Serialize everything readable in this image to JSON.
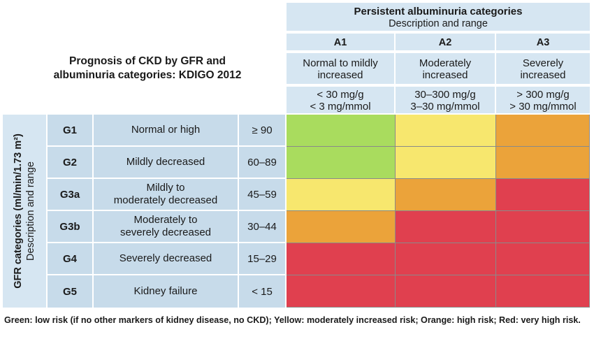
{
  "title": {
    "line1": "Prognosis of CKD by GFR and",
    "line2": "albuminuria categories: KDIGO 2012"
  },
  "albuminuria_header": {
    "title": "Persistent albuminuria categories",
    "subtitle": "Description and range",
    "columns": [
      {
        "id": "A1",
        "desc_line1": "Normal to mildly",
        "desc_line2": "increased",
        "range_line1": "< 30 mg/g",
        "range_line2": "< 3 mg/mmol"
      },
      {
        "id": "A2",
        "desc_line1": "Moderately",
        "desc_line2": "increased",
        "range_line1": "30–300 mg/g",
        "range_line2": "3–30 mg/mmol"
      },
      {
        "id": "A3",
        "desc_line1": "Severely",
        "desc_line2": "increased",
        "range_line1": "> 300 mg/g",
        "range_line2": "> 30 mg/mmol"
      }
    ]
  },
  "gfr_sidebar": {
    "line1": "GFR categories (ml/min/1.73 m²)",
    "line2": "Description and range"
  },
  "rows": [
    {
      "id": "G1",
      "desc_line1": "Normal or high",
      "desc_line2": "",
      "range": "≥ 90"
    },
    {
      "id": "G2",
      "desc_line1": "Mildly decreased",
      "desc_line2": "",
      "range": "60–89"
    },
    {
      "id": "G3a",
      "desc_line1": "Mildly to",
      "desc_line2": "moderately decreased",
      "range": "45–59"
    },
    {
      "id": "G3b",
      "desc_line1": "Moderately to",
      "desc_line2": "severely decreased",
      "range": "30–44"
    },
    {
      "id": "G4",
      "desc_line1": "Severely decreased",
      "desc_line2": "",
      "range": "15–29"
    },
    {
      "id": "G5",
      "desc_line1": "Kidney failure",
      "desc_line2": "",
      "range": "< 15"
    }
  ],
  "risk_grid": [
    [
      "green",
      "yellow",
      "orange"
    ],
    [
      "green",
      "yellow",
      "orange"
    ],
    [
      "yellow",
      "orange",
      "red"
    ],
    [
      "orange",
      "red",
      "red"
    ],
    [
      "red",
      "red",
      "red"
    ],
    [
      "red",
      "red",
      "red"
    ]
  ],
  "risk_colors": {
    "green": "#a9dc5e",
    "yellow": "#f7e76e",
    "orange": "#eba33a",
    "red": "#e0404f"
  },
  "footnote": "Green: low risk (if no other markers of kidney disease, no CKD); Yellow: moderately increased risk; Orange: high risk; Red: very high risk."
}
